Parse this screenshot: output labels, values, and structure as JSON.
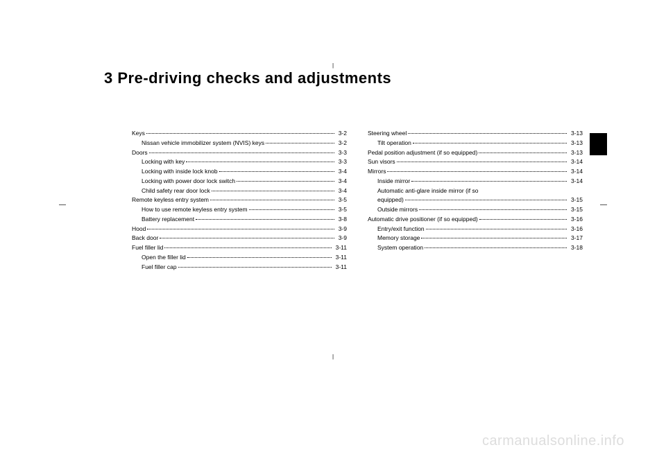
{
  "title": "3 Pre-driving checks and adjustments",
  "crop_marks": {
    "top": "|",
    "bottom": "|",
    "left": "—",
    "right": "—"
  },
  "watermark": "carmanualsonline.info",
  "left_column": [
    {
      "label": "Keys",
      "page": "3-2",
      "sub": false
    },
    {
      "label": "Nissan vehicle immobilizer system (NVIS) keys",
      "page": "3-2",
      "sub": true
    },
    {
      "label": "Doors",
      "page": "3-3",
      "sub": false
    },
    {
      "label": "Locking with key",
      "page": "3-3",
      "sub": true
    },
    {
      "label": "Locking with inside lock knob",
      "page": "3-4",
      "sub": true
    },
    {
      "label": "Locking with power door lock switch",
      "page": "3-4",
      "sub": true
    },
    {
      "label": "Child safety rear door lock",
      "page": "3-4",
      "sub": true
    },
    {
      "label": "Remote keyless entry system",
      "page": "3-5",
      "sub": false
    },
    {
      "label": "How to use remote keyless entry system",
      "page": "3-5",
      "sub": true
    },
    {
      "label": "Battery replacement",
      "page": "3-8",
      "sub": true
    },
    {
      "label": "Hood",
      "page": "3-9",
      "sub": false
    },
    {
      "label": "Back door",
      "page": "3-9",
      "sub": false
    },
    {
      "label": "Fuel filler lid",
      "page": "3-11",
      "sub": false
    },
    {
      "label": "Open the filler lid",
      "page": "3-11",
      "sub": true
    },
    {
      "label": "Fuel filler cap",
      "page": "3-11",
      "sub": true
    }
  ],
  "right_column": [
    {
      "label": "Steering wheel",
      "page": "3-13",
      "sub": false
    },
    {
      "label": "Tilt operation",
      "page": "3-13",
      "sub": true
    },
    {
      "label": "Pedal position adjustment (if so equipped)",
      "page": "3-13",
      "sub": false
    },
    {
      "label": "Sun visors",
      "page": "3-14",
      "sub": false
    },
    {
      "label": "Mirrors",
      "page": "3-14",
      "sub": false
    },
    {
      "label": "Inside mirror",
      "page": "3-14",
      "sub": true
    },
    {
      "label": "Automatic anti-glare inside mirror (if so",
      "page": "",
      "sub": true,
      "nodots": true
    },
    {
      "label": "equipped)",
      "page": "3-15",
      "sub": true
    },
    {
      "label": "Outside mirrors",
      "page": "3-15",
      "sub": true
    },
    {
      "label": "Automatic drive positioner (if so equipped)",
      "page": "3-16",
      "sub": false
    },
    {
      "label": "Entry/exit function",
      "page": "3-16",
      "sub": true
    },
    {
      "label": "Memory storage",
      "page": "3-17",
      "sub": true
    },
    {
      "label": "System operation",
      "page": "3-18",
      "sub": true
    }
  ]
}
